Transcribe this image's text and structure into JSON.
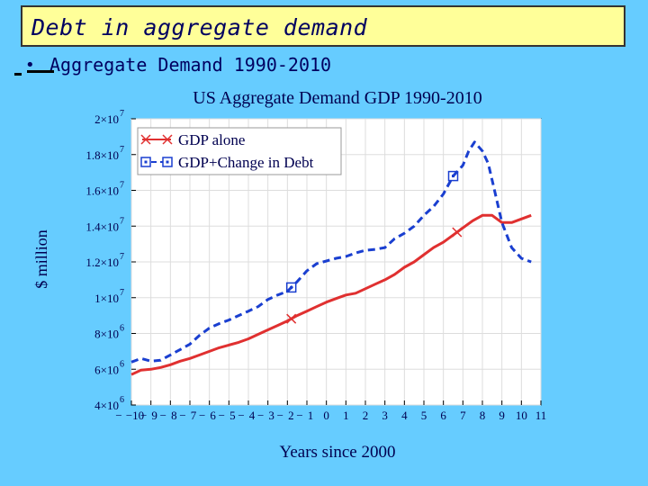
{
  "slide": {
    "title": "Debt in aggregate demand",
    "bullet": "Aggregate Demand 1990-2010"
  },
  "colors": {
    "background": "#66ccff",
    "title_fill": "#ffff99",
    "gdp_alone": "#e03030",
    "gdp_debt": "#1a3fd0"
  },
  "chart_data": {
    "type": "line",
    "title": "US Aggregate Demand GDP 1990-2010",
    "xlabel": "Years since 2000",
    "ylabel": "$ million",
    "xlim": [
      -10,
      11
    ],
    "ylim": [
      4000000,
      20000000
    ],
    "x_ticks": [
      -10,
      -9,
      -8,
      -7,
      -6,
      -5,
      -4,
      -3,
      -2,
      -1,
      0,
      1,
      2,
      3,
      4,
      5,
      6,
      7,
      8,
      9,
      10,
      11
    ],
    "x_tick_labels": [
      "−10",
      "9",
      "8",
      "7",
      "6",
      "5",
      "4",
      "3",
      "2",
      "1",
      "0",
      "1",
      "2",
      "3",
      "4",
      "5",
      "6",
      "7",
      "8",
      "9",
      "10",
      "11"
    ],
    "x_tick_prefix": "−",
    "y_ticks": [
      {
        "value": 4000000,
        "mantissa": "4×10",
        "exp": "6"
      },
      {
        "value": 6000000,
        "mantissa": "6×10",
        "exp": "6"
      },
      {
        "value": 8000000,
        "mantissa": "8×10",
        "exp": "6"
      },
      {
        "value": 10000000,
        "mantissa": "1×10",
        "exp": "7"
      },
      {
        "value": 12000000,
        "mantissa": "1.2×10",
        "exp": "7"
      },
      {
        "value": 14000000,
        "mantissa": "1.4×10",
        "exp": "7"
      },
      {
        "value": 16000000,
        "mantissa": "1.6×10",
        "exp": "7"
      },
      {
        "value": 18000000,
        "mantissa": "1.8×10",
        "exp": "7"
      },
      {
        "value": 20000000,
        "mantissa": "2×10",
        "exp": "7"
      }
    ],
    "legend": {
      "placement": "top-left"
    },
    "series": [
      {
        "name": "GDP alone",
        "style": "solid",
        "marker": "x",
        "marker_x": [
          -1.8,
          6.7
        ],
        "x": [
          -10,
          -9.5,
          -9,
          -8.5,
          -8,
          -7.5,
          -7,
          -6.5,
          -6,
          -5.5,
          -5,
          -4.5,
          -4,
          -3.5,
          -3,
          -2.5,
          -2,
          -1.5,
          -1,
          -0.5,
          0,
          0.5,
          1,
          1.5,
          2,
          2.5,
          3,
          3.5,
          4,
          4.5,
          5,
          5.5,
          6,
          6.5,
          7,
          7.5,
          8,
          8.5,
          9,
          9.5,
          10,
          10.5
        ],
        "values": [
          5700000,
          5950000,
          6000000,
          6100000,
          6250000,
          6450000,
          6600000,
          6800000,
          7000000,
          7200000,
          7350000,
          7500000,
          7700000,
          7950000,
          8200000,
          8450000,
          8700000,
          9000000,
          9250000,
          9500000,
          9750000,
          9950000,
          10150000,
          10250000,
          10500000,
          10750000,
          11000000,
          11300000,
          11700000,
          12000000,
          12400000,
          12800000,
          13100000,
          13500000,
          13900000,
          14300000,
          14600000,
          14600000,
          14200000,
          14200000,
          14400000,
          14600000
        ]
      },
      {
        "name": "GDP+Change in Debt",
        "style": "dashed",
        "marker": "square",
        "marker_x": [
          -1.8,
          6.5
        ],
        "x": [
          -10,
          -9.5,
          -9,
          -8.5,
          -8,
          -7.5,
          -7,
          -6.5,
          -6,
          -5.5,
          -5,
          -4.5,
          -4,
          -3.5,
          -3,
          -2.5,
          -2,
          -1.5,
          -1,
          -0.5,
          0,
          0.5,
          1,
          1.5,
          2,
          2.5,
          3,
          3.5,
          4,
          4.5,
          5,
          5.5,
          6,
          6.5,
          7,
          7.3,
          7.6,
          8,
          8.3,
          8.6,
          9,
          9.5,
          10,
          10.5
        ],
        "values": [
          6400000,
          6600000,
          6450000,
          6500000,
          6800000,
          7100000,
          7400000,
          7900000,
          8300000,
          8550000,
          8750000,
          9000000,
          9250000,
          9500000,
          9900000,
          10150000,
          10350000,
          10900000,
          11500000,
          11900000,
          12050000,
          12200000,
          12300000,
          12500000,
          12650000,
          12700000,
          12800000,
          13300000,
          13600000,
          14000000,
          14600000,
          15100000,
          15800000,
          16800000,
          17400000,
          18200000,
          18700000,
          18200000,
          17500000,
          16100000,
          14200000,
          12800000,
          12200000,
          12000000
        ]
      }
    ]
  }
}
